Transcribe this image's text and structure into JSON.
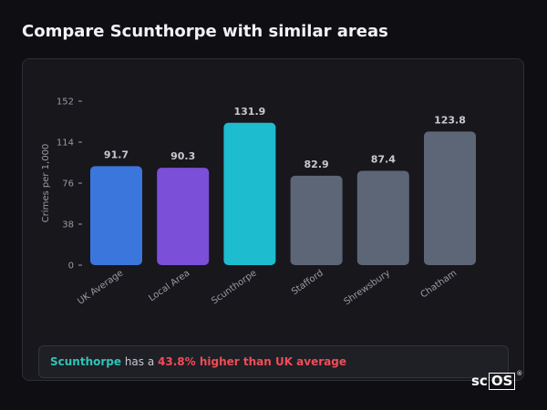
{
  "page": {
    "title": "Compare Scunthorpe with similar areas"
  },
  "chart_data": {
    "type": "bar",
    "title": "",
    "xlabel": "",
    "ylabel": "Crimes per 1,000",
    "ylim": [
      0,
      152
    ],
    "yticks": [
      0,
      38,
      76,
      114,
      152
    ],
    "grid": false,
    "categories": [
      "UK Average",
      "Local Area",
      "Scunthorpe",
      "Stafford",
      "Shrewsbury",
      "Chatham"
    ],
    "values": [
      91.7,
      90.3,
      131.9,
      82.9,
      87.4,
      123.8
    ],
    "value_labels": [
      "91.7",
      "90.3",
      "131.9",
      "82.9",
      "87.4",
      "123.8"
    ],
    "colors": [
      "#3b76dd",
      "#7b4fd8",
      "#1ebccf",
      "#5d6676",
      "#5d6676",
      "#5d6676"
    ],
    "label_color": "#c9c9d0",
    "axis_color": "#9a9aa3"
  },
  "callout": {
    "area": "Scunthorpe",
    "connector": " has a ",
    "difference": "43.8% higher than UK average",
    "area_color": "#2ec4b6",
    "difference_color": "#ef4d57"
  },
  "brand": {
    "prefix": "sc",
    "boxed": "OS",
    "mark": "®"
  }
}
